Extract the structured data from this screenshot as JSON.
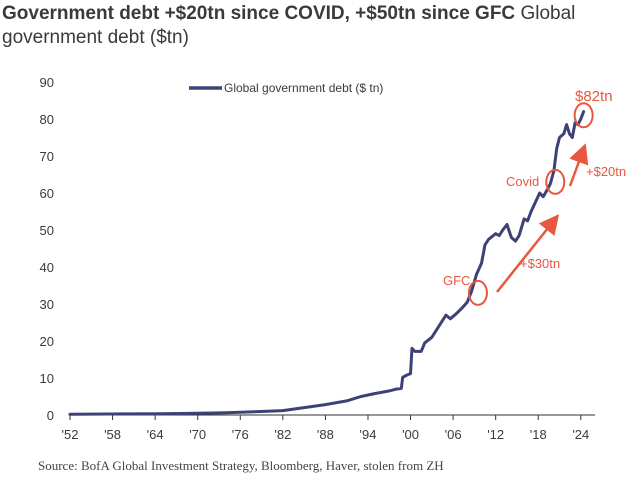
{
  "title_bold": "Government debt +$20tn since COVID, +$50tn since GFC",
  "title_rest": "Global government debt ($tn)",
  "source": "Source: BofA Global Investment Strategy, Bloomberg, Haver, stolen from ZH",
  "colors": {
    "line": "#3d4176",
    "annotation": "#e8573f",
    "axis": "#333333",
    "text": "#3a3a3a"
  },
  "chart_data": {
    "type": "line",
    "title": "Global government debt ($tn)",
    "xlabel": "",
    "ylabel": "",
    "xlim": [
      1952,
      2026
    ],
    "ylim": [
      0,
      90
    ],
    "yticks": [
      0,
      10,
      20,
      30,
      40,
      50,
      60,
      70,
      80,
      90
    ],
    "xticks": [
      "'52",
      "'58",
      "'64",
      "'70",
      "'76",
      "'82",
      "'88",
      "'94",
      "'00",
      "'06",
      "'12",
      "'18",
      "'24"
    ],
    "legend": {
      "position": "top-center"
    },
    "series": [
      {
        "name": "Global government debt ($ tn)",
        "color": "#3d4176",
        "points": [
          [
            1952,
            0.2
          ],
          [
            1955,
            0.25
          ],
          [
            1960,
            0.3
          ],
          [
            1965,
            0.35
          ],
          [
            1970,
            0.45
          ],
          [
            1974,
            0.6
          ],
          [
            1978,
            0.9
          ],
          [
            1982,
            1.2
          ],
          [
            1985,
            2.0
          ],
          [
            1988,
            2.8
          ],
          [
            1991,
            3.8
          ],
          [
            1993,
            5.0
          ],
          [
            1995,
            5.8
          ],
          [
            1997,
            6.5
          ],
          [
            1998,
            7.0
          ],
          [
            1998.7,
            7.2
          ],
          [
            1998.9,
            10.2
          ],
          [
            1999.5,
            10.8
          ],
          [
            2000,
            11.2
          ],
          [
            2000.2,
            18.0
          ],
          [
            2000.6,
            17.2
          ],
          [
            2001.5,
            17.2
          ],
          [
            2002,
            19.5
          ],
          [
            2003,
            21.0
          ],
          [
            2004,
            24.0
          ],
          [
            2005,
            27.0
          ],
          [
            2005.6,
            26.0
          ],
          [
            2006.5,
            27.5
          ],
          [
            2007.3,
            29.0
          ],
          [
            2008,
            30.5
          ],
          [
            2008.6,
            33.5
          ],
          [
            2009.3,
            38.0
          ],
          [
            2010,
            41.0
          ],
          [
            2010.5,
            46.0
          ],
          [
            2011,
            47.5
          ],
          [
            2012,
            49.0
          ],
          [
            2012.5,
            48.5
          ],
          [
            2013,
            50.0
          ],
          [
            2013.6,
            51.5
          ],
          [
            2014.2,
            48.0
          ],
          [
            2014.8,
            47.0
          ],
          [
            2015.3,
            48.5
          ],
          [
            2016,
            53.0
          ],
          [
            2016.5,
            52.5
          ],
          [
            2017,
            55.0
          ],
          [
            2017.6,
            57.5
          ],
          [
            2018.2,
            60.0
          ],
          [
            2018.7,
            59.0
          ],
          [
            2019.3,
            61.0
          ],
          [
            2019.7,
            62.5
          ],
          [
            2020.2,
            66.0
          ],
          [
            2020.6,
            72.0
          ],
          [
            2021,
            75.0
          ],
          [
            2021.6,
            76.0
          ],
          [
            2022,
            78.5
          ],
          [
            2022.4,
            76.0
          ],
          [
            2022.8,
            75.0
          ],
          [
            2023.2,
            79.0
          ],
          [
            2023.6,
            78.5
          ],
          [
            2024,
            80.0
          ],
          [
            2024.4,
            82.0
          ]
        ]
      }
    ],
    "annotations": {
      "final_value": "$82tn",
      "covid": "Covid",
      "gfc": "GFC",
      "increase_gfc": "+$30tn",
      "increase_covid": "+$20tn"
    }
  }
}
